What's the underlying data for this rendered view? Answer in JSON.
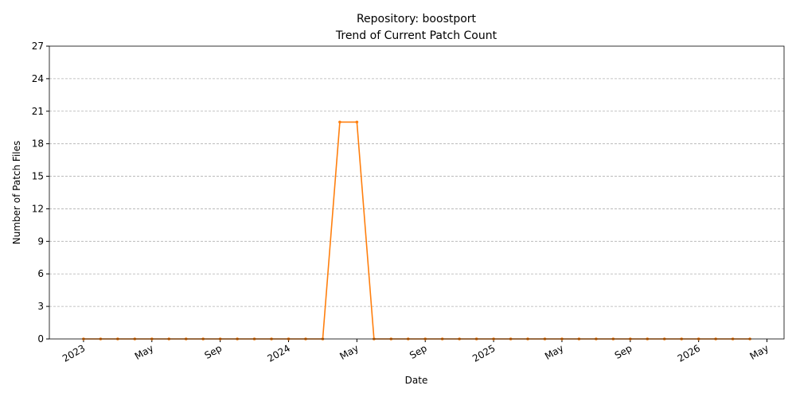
{
  "chart_data": {
    "type": "line",
    "title": "Repository: boostport",
    "subtitle": "Trend of Current Patch Count",
    "xlabel": "Date",
    "ylabel": "Number of Patch Files",
    "x": [
      "2023-01",
      "2023-02",
      "2023-03",
      "2023-04",
      "2023-05",
      "2023-06",
      "2023-07",
      "2023-08",
      "2023-09",
      "2023-10",
      "2023-11",
      "2023-12",
      "2024-01",
      "2024-02",
      "2024-03",
      "2024-04",
      "2024-05",
      "2024-06",
      "2024-07",
      "2024-08",
      "2024-09",
      "2024-10",
      "2024-11",
      "2024-12",
      "2025-01",
      "2025-02",
      "2025-03",
      "2025-04",
      "2025-05",
      "2025-06",
      "2025-07",
      "2025-08",
      "2025-09",
      "2025-10",
      "2025-11",
      "2025-12",
      "2026-01",
      "2026-02",
      "2026-03",
      "2026-04"
    ],
    "series": [
      {
        "color": "#ff7f0e",
        "values": [
          0,
          0,
          0,
          0,
          0,
          0,
          0,
          0,
          0,
          0,
          0,
          0,
          0,
          0,
          0,
          20,
          20,
          0,
          0,
          0,
          0,
          0,
          0,
          0,
          0,
          0,
          0,
          0,
          0,
          0,
          0,
          0,
          0,
          0,
          0,
          0,
          0,
          0,
          0,
          0
        ]
      }
    ],
    "xlim": [
      "2022-11",
      "2026-06"
    ],
    "xticks": [
      {
        "value": "2023-01",
        "label": "2023"
      },
      {
        "value": "2023-05",
        "label": "May"
      },
      {
        "value": "2023-09",
        "label": "Sep"
      },
      {
        "value": "2024-01",
        "label": "2024"
      },
      {
        "value": "2024-05",
        "label": "May"
      },
      {
        "value": "2024-09",
        "label": "Sep"
      },
      {
        "value": "2025-01",
        "label": "2025"
      },
      {
        "value": "2025-05",
        "label": "May"
      },
      {
        "value": "2025-09",
        "label": "Sep"
      },
      {
        "value": "2026-01",
        "label": "2026"
      },
      {
        "value": "2026-05",
        "label": "May"
      }
    ],
    "ylim": [
      0,
      27
    ],
    "yticks": [
      0,
      3,
      6,
      9,
      12,
      15,
      18,
      21,
      24,
      27
    ],
    "grid": true
  }
}
